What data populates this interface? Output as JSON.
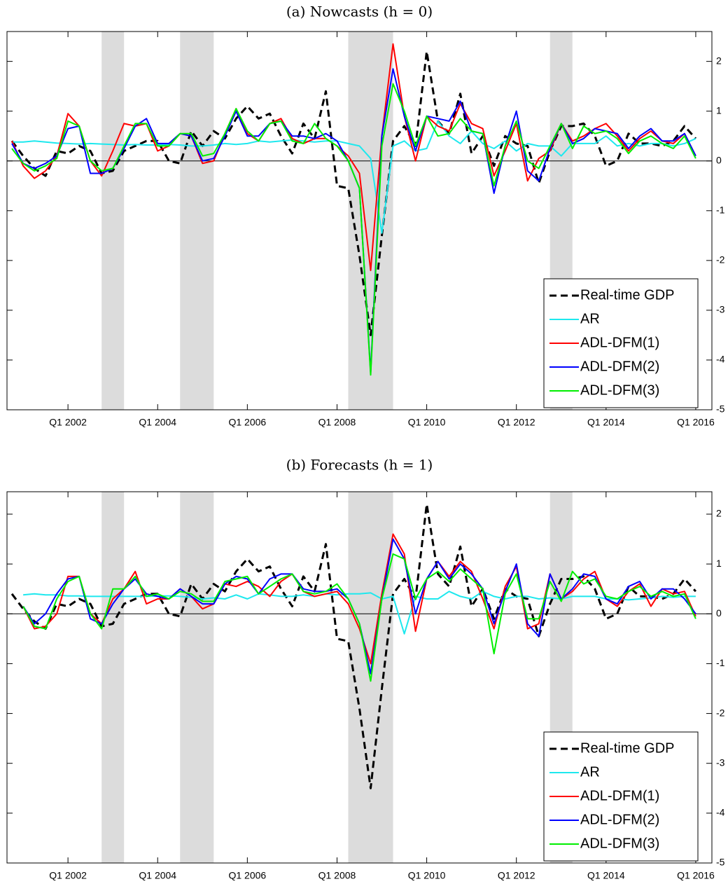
{
  "chart_data": [
    {
      "type": "line",
      "title": "(a) Nowcasts (h = 0)",
      "x": [
        2000.75,
        2001,
        2001.25,
        2001.5,
        2001.75,
        2002,
        2002.25,
        2002.5,
        2002.75,
        2003,
        2003.25,
        2003.5,
        2003.75,
        2004,
        2004.25,
        2004.5,
        2004.75,
        2005,
        2005.25,
        2005.5,
        2005.75,
        2006,
        2006.25,
        2006.5,
        2006.75,
        2007,
        2007.25,
        2007.5,
        2007.75,
        2008,
        2008.25,
        2008.5,
        2008.75,
        2009,
        2009.25,
        2009.5,
        2009.75,
        2010,
        2010.25,
        2010.5,
        2010.75,
        2011,
        2011.25,
        2011.5,
        2011.75,
        2012,
        2012.25,
        2012.5,
        2012.75,
        2013,
        2013.25,
        2013.5,
        2013.75,
        2014,
        2014.25,
        2014.5,
        2014.75,
        2015,
        2015.25,
        2015.5,
        2015.75,
        2016
      ],
      "series": [
        {
          "name": "Real-time GDP",
          "color": "#000000",
          "style": "dashed",
          "values": [
            0.4,
            0.1,
            -0.15,
            -0.3,
            0.2,
            0.15,
            0.3,
            0.2,
            -0.25,
            -0.2,
            0.2,
            0.3,
            0.4,
            0.4,
            0.0,
            -0.05,
            0.6,
            0.3,
            0.6,
            0.45,
            0.85,
            1.1,
            0.85,
            0.95,
            0.5,
            0.15,
            0.75,
            0.45,
            1.4,
            -0.5,
            -0.55,
            -1.9,
            -3.5,
            -1.5,
            0.4,
            0.7,
            0.3,
            2.2,
            0.8,
            0.55,
            1.35,
            0.15,
            0.5,
            -0.1,
            0.5,
            0.35,
            0.3,
            -0.45,
            0.2,
            0.7,
            0.7,
            0.75,
            0.5,
            -0.1,
            0.0,
            0.55,
            0.35,
            0.35,
            0.3,
            0.4,
            0.7,
            0.45
          ]
        },
        {
          "name": "AR",
          "color": "#1ee8ee",
          "values": [
            0.38,
            0.38,
            0.4,
            0.38,
            0.36,
            0.35,
            0.34,
            0.35,
            0.34,
            0.33,
            0.32,
            0.33,
            0.32,
            0.32,
            0.33,
            0.32,
            0.3,
            0.3,
            0.32,
            0.35,
            0.33,
            0.35,
            0.4,
            0.38,
            0.4,
            0.42,
            0.4,
            0.38,
            0.4,
            0.4,
            0.35,
            0.3,
            0.05,
            -1.45,
            0.3,
            0.4,
            0.2,
            0.25,
            0.8,
            0.5,
            0.35,
            0.6,
            0.35,
            0.25,
            0.4,
            0.2,
            0.35,
            0.3,
            0.3,
            0.1,
            0.35,
            0.35,
            0.35,
            0.5,
            0.3,
            0.35,
            0.3,
            0.35,
            0.35,
            0.3,
            0.35,
            0.45
          ]
        },
        {
          "name": "ADL-DFM(1)",
          "color": "#ff0000",
          "values": [
            0.4,
            -0.1,
            -0.35,
            -0.2,
            0.1,
            0.95,
            0.7,
            0.0,
            -0.3,
            0.2,
            0.75,
            0.7,
            0.75,
            0.2,
            0.3,
            0.55,
            0.5,
            -0.05,
            0.0,
            0.55,
            1.05,
            0.55,
            0.4,
            0.75,
            0.85,
            0.45,
            0.35,
            0.45,
            0.45,
            0.3,
            0.1,
            -0.25,
            -2.2,
            0.5,
            2.35,
            0.9,
            0.0,
            0.9,
            0.7,
            0.6,
            1.15,
            0.75,
            0.65,
            -0.3,
            0.2,
            0.75,
            -0.4,
            0.05,
            0.2,
            0.75,
            0.4,
            0.5,
            0.65,
            0.75,
            0.5,
            0.2,
            0.45,
            0.6,
            0.4,
            0.35,
            0.55,
            0.1
          ]
        },
        {
          "name": "ADL-DFM(2)",
          "color": "#0000ff",
          "values": [
            0.35,
            -0.05,
            -0.15,
            -0.05,
            0.1,
            0.65,
            0.7,
            -0.25,
            -0.25,
            -0.15,
            0.25,
            0.7,
            0.85,
            0.35,
            0.35,
            0.55,
            0.5,
            0.0,
            0.05,
            0.5,
            1.0,
            0.5,
            0.5,
            0.75,
            0.8,
            0.5,
            0.5,
            0.45,
            0.55,
            0.4,
            0.0,
            -0.55,
            -4.25,
            0.5,
            1.85,
            0.9,
            0.2,
            0.9,
            0.85,
            0.8,
            1.2,
            0.6,
            0.55,
            -0.65,
            0.3,
            1.0,
            -0.2,
            -0.4,
            0.25,
            0.75,
            0.35,
            0.45,
            0.65,
            0.6,
            0.55,
            0.25,
            0.5,
            0.65,
            0.4,
            0.4,
            0.55,
            0.1
          ]
        },
        {
          "name": "ADL-DFM(3)",
          "color": "#00ee00",
          "values": [
            0.25,
            -0.05,
            -0.2,
            -0.1,
            0.05,
            0.8,
            0.7,
            0.0,
            -0.2,
            -0.15,
            0.3,
            0.75,
            0.75,
            0.3,
            0.3,
            0.55,
            0.55,
            0.1,
            0.15,
            0.55,
            1.05,
            0.6,
            0.4,
            0.75,
            0.8,
            0.4,
            0.35,
            0.75,
            0.45,
            0.3,
            0.0,
            -0.55,
            -4.3,
            0.3,
            1.55,
            1.0,
            0.3,
            0.9,
            0.5,
            0.55,
            0.85,
            0.6,
            0.55,
            -0.5,
            0.3,
            0.8,
            0.0,
            -0.15,
            0.3,
            0.75,
            0.25,
            0.7,
            0.55,
            0.6,
            0.45,
            0.15,
            0.4,
            0.5,
            0.35,
            0.25,
            0.5,
            0.05
          ]
        }
      ],
      "shaded": [
        [
          2002.75,
          2003.25
        ],
        [
          2004.5,
          2005.25
        ],
        [
          2008.25,
          2009.25
        ],
        [
          2012.75,
          2013.25
        ]
      ],
      "hline": 0,
      "xlim": [
        2000.64,
        2016.36
      ],
      "xticks": [
        {
          "value": 2002,
          "label": "Q1 2002"
        },
        {
          "value": 2004,
          "label": "Q1 2004"
        },
        {
          "value": 2006,
          "label": "Q1 2006"
        },
        {
          "value": 2008,
          "label": "Q1 2008"
        },
        {
          "value": 2010,
          "label": "Q1 2010"
        },
        {
          "value": 2012,
          "label": "Q1 2012"
        },
        {
          "value": 2014,
          "label": "Q1 2014"
        },
        {
          "value": 2016,
          "label": "Q1 2016"
        }
      ],
      "ylim": [
        -5,
        2.6
      ],
      "yticks": [
        -5,
        -4,
        -3,
        -2,
        -1,
        0,
        1,
        2
      ],
      "legend": "lower right"
    },
    {
      "type": "line",
      "title": "(b) Forecasts (h = 1)",
      "x": [
        2000.75,
        2001,
        2001.25,
        2001.5,
        2001.75,
        2002,
        2002.25,
        2002.5,
        2002.75,
        2003,
        2003.25,
        2003.5,
        2003.75,
        2004,
        2004.25,
        2004.5,
        2004.75,
        2005,
        2005.25,
        2005.5,
        2005.75,
        2006,
        2006.25,
        2006.5,
        2006.75,
        2007,
        2007.25,
        2007.5,
        2007.75,
        2008,
        2008.25,
        2008.5,
        2008.75,
        2009,
        2009.25,
        2009.5,
        2009.75,
        2010,
        2010.25,
        2010.5,
        2010.75,
        2011,
        2011.25,
        2011.5,
        2011.75,
        2012,
        2012.25,
        2012.5,
        2012.75,
        2013,
        2013.25,
        2013.5,
        2013.75,
        2014,
        2014.25,
        2014.5,
        2014.75,
        2015,
        2015.25,
        2015.5,
        2015.75,
        2016
      ],
      "series": [
        {
          "name": "Real-time GDP",
          "color": "#000000",
          "style": "dashed",
          "values": [
            0.4,
            0.1,
            -0.15,
            -0.3,
            0.2,
            0.15,
            0.3,
            0.2,
            -0.25,
            -0.2,
            0.2,
            0.3,
            0.4,
            0.4,
            0.0,
            -0.05,
            0.6,
            0.3,
            0.6,
            0.45,
            0.85,
            1.1,
            0.85,
            0.95,
            0.5,
            0.15,
            0.75,
            0.45,
            1.4,
            -0.5,
            -0.55,
            -1.9,
            -3.5,
            -1.5,
            0.4,
            0.7,
            0.3,
            2.2,
            0.8,
            0.55,
            1.35,
            0.15,
            0.5,
            -0.1,
            0.5,
            0.35,
            0.3,
            -0.45,
            0.2,
            0.7,
            0.7,
            0.75,
            0.5,
            -0.1,
            0.0,
            0.55,
            0.35,
            0.35,
            0.3,
            0.4,
            0.7,
            0.45
          ]
        },
        {
          "name": "AR",
          "color": "#1ee8ee",
          "values": [
            null,
            0.38,
            0.4,
            0.38,
            0.38,
            0.36,
            0.36,
            0.35,
            0.35,
            0.35,
            0.35,
            0.35,
            0.35,
            0.36,
            0.36,
            0.35,
            0.33,
            0.3,
            0.32,
            0.3,
            0.38,
            0.3,
            0.4,
            0.38,
            0.35,
            0.35,
            0.38,
            0.35,
            0.4,
            0.38,
            0.4,
            0.4,
            0.42,
            0.3,
            0.35,
            -0.4,
            0.35,
            0.3,
            0.3,
            0.45,
            0.35,
            0.3,
            0.45,
            0.35,
            0.3,
            0.35,
            0.35,
            0.3,
            0.32,
            0.3,
            0.35,
            0.35,
            0.35,
            0.3,
            0.3,
            0.28,
            0.3,
            0.32,
            0.35,
            0.33,
            0.35,
            0.35
          ]
        },
        {
          "name": "ADL-DFM(1)",
          "color": "#ff0000",
          "values": [
            null,
            0.15,
            -0.3,
            -0.25,
            0.0,
            0.75,
            0.75,
            0.0,
            -0.2,
            0.3,
            0.5,
            0.85,
            0.2,
            0.3,
            0.3,
            0.5,
            0.35,
            0.1,
            0.2,
            0.6,
            0.55,
            0.65,
            0.55,
            0.35,
            0.65,
            0.8,
            0.45,
            0.35,
            0.4,
            0.45,
            0.2,
            -0.3,
            -1.0,
            0.4,
            1.6,
            1.2,
            -0.35,
            0.7,
            1.05,
            0.75,
            1.05,
            0.85,
            0.3,
            -0.3,
            0.55,
            0.95,
            -0.3,
            -0.2,
            0.8,
            0.3,
            0.45,
            0.7,
            0.85,
            0.3,
            0.15,
            0.45,
            0.6,
            0.15,
            0.5,
            0.4,
            0.45,
            -0.05
          ]
        },
        {
          "name": "ADL-DFM(2)",
          "color": "#0000ff",
          "values": [
            null,
            0.15,
            -0.2,
            0.0,
            0.4,
            0.7,
            0.75,
            -0.1,
            -0.2,
            0.2,
            0.5,
            0.7,
            0.4,
            0.35,
            0.3,
            0.5,
            0.35,
            0.2,
            0.2,
            0.6,
            0.75,
            0.7,
            0.4,
            0.7,
            0.8,
            0.8,
            0.5,
            0.45,
            0.45,
            0.5,
            0.3,
            -0.2,
            -1.2,
            0.3,
            1.5,
            1.1,
            0.0,
            0.7,
            1.05,
            0.7,
            1.0,
            0.8,
            0.5,
            -0.2,
            0.45,
            1.0,
            -0.2,
            -0.45,
            0.8,
            0.3,
            0.5,
            0.8,
            0.75,
            0.3,
            0.2,
            0.55,
            0.65,
            0.3,
            0.5,
            0.5,
            0.3,
            0.0
          ]
        },
        {
          "name": "ADL-DFM(3)",
          "color": "#00ee00",
          "values": [
            null,
            0.15,
            -0.25,
            -0.3,
            0.3,
            0.65,
            0.75,
            0.0,
            -0.3,
            0.5,
            0.5,
            0.75,
            0.35,
            0.4,
            0.3,
            0.45,
            0.4,
            0.25,
            0.25,
            0.65,
            0.7,
            0.75,
            0.4,
            0.55,
            0.7,
            0.8,
            0.45,
            0.4,
            0.45,
            0.6,
            0.3,
            -0.2,
            -1.35,
            0.3,
            1.2,
            1.1,
            0.3,
            0.7,
            0.85,
            0.65,
            0.9,
            0.7,
            0.5,
            -0.8,
            0.4,
            0.8,
            -0.1,
            -0.1,
            0.65,
            0.25,
            0.85,
            0.6,
            0.7,
            0.35,
            0.3,
            0.45,
            0.55,
            0.35,
            0.45,
            0.35,
            0.4,
            -0.1
          ]
        }
      ],
      "shaded": [
        [
          2002.75,
          2003.25
        ],
        [
          2004.5,
          2005.25
        ],
        [
          2008.25,
          2009.25
        ],
        [
          2012.75,
          2013.25
        ]
      ],
      "hline": 0,
      "xlim": [
        2000.64,
        2016.36
      ],
      "xticks": [
        {
          "value": 2002,
          "label": "Q1 2002"
        },
        {
          "value": 2004,
          "label": "Q1 2004"
        },
        {
          "value": 2006,
          "label": "Q1 2006"
        },
        {
          "value": 2008,
          "label": "Q1 2008"
        },
        {
          "value": 2010,
          "label": "Q1 2010"
        },
        {
          "value": 2012,
          "label": "Q1 2012"
        },
        {
          "value": 2014,
          "label": "Q1 2014"
        },
        {
          "value": 2016,
          "label": "Q1 2016"
        }
      ],
      "ylim": [
        -5,
        2.45
      ],
      "yticks": [
        -5,
        -4,
        -3,
        -2,
        -1,
        0,
        1,
        2
      ],
      "legend": "lower right"
    }
  ]
}
